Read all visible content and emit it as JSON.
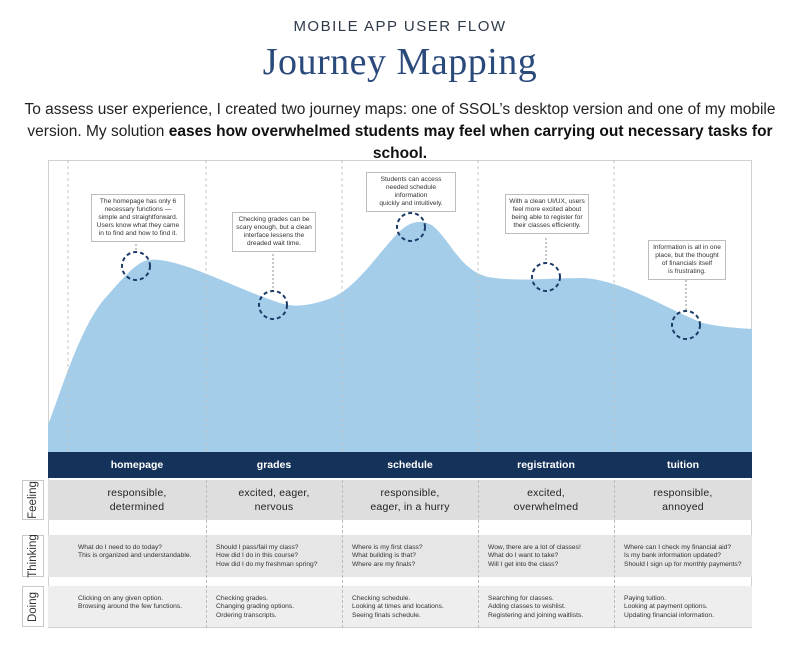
{
  "header": {
    "kicker": "MOBILE APP USER FLOW",
    "title": "Journey Mapping",
    "intro_line1": "To assess user experience, I created two journey maps: one of SSOL’s desktop version and one of my mobile",
    "intro_line2_plain": "version. My solution ",
    "intro_line2_bold": "eases how overwhelmed students may feel when carrying out necessary tasks for school."
  },
  "colors": {
    "area": "#a4cdea",
    "bar": "#15325a",
    "title": "#2b4a7c"
  },
  "row_labels": {
    "feeling": "Feeling",
    "thinking": "Thinking",
    "doing": "Doing"
  },
  "stages": [
    {
      "name": "homepage",
      "note": [
        "The homepage has only 6",
        "necessary functions —",
        "simple and straightforward.",
        "Users know what they came",
        "in to find and how to find it."
      ],
      "feeling": [
        "responsible,",
        "determined"
      ],
      "thinking": [
        "What do I need to do today?",
        "This is organized and understandable."
      ],
      "doing": [
        "Clicking on any given option.",
        "Browsing around the few functions."
      ]
    },
    {
      "name": "grades",
      "note": [
        "Checking grades can be",
        "scary enough, but a clean",
        "interface lessens the",
        "dreaded wait time."
      ],
      "feeling": [
        "excited, eager,",
        "nervous"
      ],
      "thinking": [
        "Should I pass/fail my class?",
        "How did I do in this course?",
        "How did I do my freshman spring?"
      ],
      "doing": [
        "Checking grades.",
        "Changing grading options.",
        "Ordering transcripts."
      ]
    },
    {
      "name": "schedule",
      "note": [
        "Students can access",
        "needed schedule information",
        "quickly and intuitively."
      ],
      "feeling": [
        "responsible,",
        "eager, in a hurry"
      ],
      "thinking": [
        "Where is my first class?",
        "What building is that?",
        "Where are my finals?"
      ],
      "doing": [
        "Checking schedule.",
        "Looking at times and locations.",
        "Seeing finals schedule."
      ]
    },
    {
      "name": "registration",
      "note": [
        "With a clean UI/UX, users",
        "feel more excited about",
        "being able to register for",
        "their classes efficiently."
      ],
      "feeling": [
        "excited,",
        "overwhelmed"
      ],
      "thinking": [
        "Wow, there are a lot of classes!",
        "What do I want to take?",
        "Will I get into the class?"
      ],
      "doing": [
        "Searching for classes.",
        "Adding classes to wishlist.",
        "Registering and joining waitlists."
      ]
    },
    {
      "name": "tuition",
      "note": [
        "Information is all in one",
        "place, but the thought",
        "of financials itself",
        "is frustrating."
      ],
      "feeling": [
        "responsible,",
        "annoyed"
      ],
      "thinking": [
        "Where can I check my financial aid?",
        "Is my bank information updated?",
        "Should I sign up for monthly payments?"
      ],
      "doing": [
        "Paying tuition.",
        "Looking at payment options.",
        "Updating financial information."
      ]
    }
  ]
}
